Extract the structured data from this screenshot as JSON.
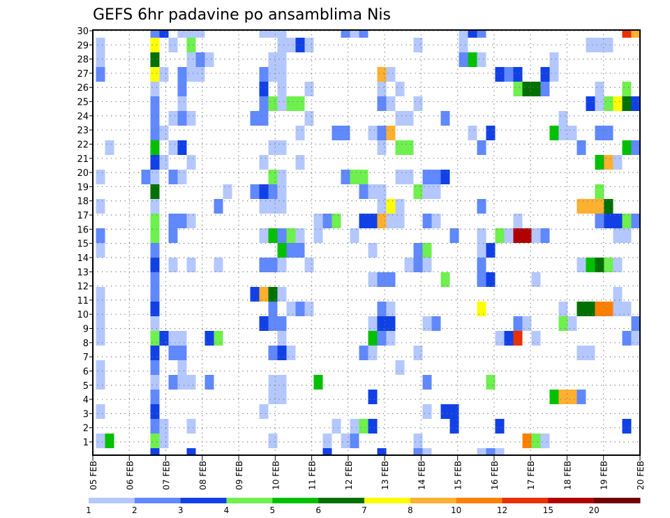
{
  "chart_data": {
    "type": "heatmap",
    "title": "GEFS 6hr padavine po ansamblima Nis",
    "xlabel": "",
    "ylabel": "",
    "x_tick_labels": [
      "05 FEB",
      "06 FEB",
      "07 FEB",
      "08 FEB",
      "09 FEB",
      "10 FEB",
      "11 FEB",
      "12 FEB",
      "13 FEB",
      "14 FEB",
      "15 FEB",
      "16 FEB",
      "17 FEB",
      "18 FEB",
      "19 FEB",
      "20 FEB"
    ],
    "y_tick_labels": [
      "1",
      "2",
      "3",
      "4",
      "5",
      "6",
      "7",
      "8",
      "9",
      "10",
      "11",
      "12",
      "13",
      "14",
      "15",
      "16",
      "17",
      "18",
      "19",
      "20",
      "21",
      "22",
      "23",
      "24",
      "25",
      "26",
      "27",
      "28",
      "29",
      "30"
    ],
    "x_steps": 60,
    "x_step_hours": 6,
    "members": 30,
    "grid": true,
    "colorbar": {
      "placement": "bottom",
      "labels": [
        "1",
        "2",
        "3",
        "4",
        "5",
        "6",
        "7",
        "8",
        "10",
        "12",
        "15",
        "20"
      ],
      "colors": [
        "#b4c8ff",
        "#6088ff",
        "#1040e6",
        "#6ef04e",
        "#00c000",
        "#007000",
        "#ffff00",
        "#ffb030",
        "#ff8000",
        "#e83000",
        "#b00000",
        "#700000"
      ]
    },
    "cells_note": "member -> list of [time step index, colour class index 1-12]",
    "cells": {
      "30": [
        [
          6,
          2
        ],
        [
          7,
          3
        ],
        [
          9,
          1
        ],
        [
          10,
          1
        ],
        [
          11,
          1
        ],
        [
          18,
          1
        ],
        [
          19,
          1
        ],
        [
          20,
          1
        ],
        [
          27,
          2
        ],
        [
          28,
          1
        ],
        [
          29,
          2
        ],
        [
          40,
          1
        ],
        [
          41,
          3
        ],
        [
          42,
          2
        ],
        [
          58,
          10
        ],
        [
          59,
          8
        ]
      ],
      "29": [
        [
          0,
          1
        ],
        [
          6,
          7
        ],
        [
          8,
          1
        ],
        [
          10,
          4
        ],
        [
          20,
          1
        ],
        [
          21,
          1
        ],
        [
          22,
          3
        ],
        [
          23,
          1
        ],
        [
          35,
          1
        ],
        [
          40,
          1
        ],
        [
          54,
          1
        ],
        [
          55,
          1
        ],
        [
          56,
          1
        ]
      ],
      "28": [
        [
          0,
          1
        ],
        [
          6,
          6
        ],
        [
          10,
          1
        ],
        [
          11,
          2
        ],
        [
          12,
          1
        ],
        [
          19,
          1
        ],
        [
          20,
          1
        ],
        [
          40,
          2
        ],
        [
          41,
          5
        ],
        [
          42,
          1
        ],
        [
          50,
          1
        ]
      ],
      "27": [
        [
          0,
          2
        ],
        [
          6,
          7
        ],
        [
          7,
          1
        ],
        [
          9,
          2
        ],
        [
          10,
          1
        ],
        [
          11,
          1
        ],
        [
          18,
          2
        ],
        [
          19,
          1
        ],
        [
          20,
          1
        ],
        [
          31,
          8
        ],
        [
          32,
          1
        ],
        [
          44,
          3
        ],
        [
          45,
          2
        ],
        [
          46,
          3
        ],
        [
          49,
          3
        ],
        [
          50,
          1
        ]
      ],
      "26": [
        [
          6,
          1
        ],
        [
          9,
          2
        ],
        [
          18,
          3
        ],
        [
          20,
          1
        ],
        [
          23,
          1
        ],
        [
          31,
          1
        ],
        [
          33,
          1
        ],
        [
          46,
          4
        ],
        [
          47,
          6
        ],
        [
          48,
          6
        ],
        [
          49,
          2
        ],
        [
          55,
          1
        ],
        [
          58,
          4
        ]
      ],
      "25": [
        [
          6,
          2
        ],
        [
          9,
          1
        ],
        [
          18,
          2
        ],
        [
          19,
          4
        ],
        [
          20,
          1
        ],
        [
          21,
          4
        ],
        [
          22,
          4
        ],
        [
          31,
          2
        ],
        [
          32,
          1
        ],
        [
          35,
          1
        ],
        [
          54,
          3
        ],
        [
          55,
          1
        ],
        [
          56,
          4
        ],
        [
          57,
          7
        ],
        [
          58,
          6
        ],
        [
          59,
          3
        ]
      ],
      "24": [
        [
          6,
          2
        ],
        [
          8,
          1
        ],
        [
          9,
          2
        ],
        [
          10,
          1
        ],
        [
          17,
          2
        ],
        [
          18,
          2
        ],
        [
          23,
          1
        ],
        [
          33,
          1
        ],
        [
          34,
          1
        ],
        [
          38,
          2
        ],
        [
          51,
          1
        ]
      ],
      "23": [
        [
          6,
          2
        ],
        [
          7,
          1
        ],
        [
          22,
          1
        ],
        [
          26,
          2
        ],
        [
          27,
          2
        ],
        [
          30,
          1
        ],
        [
          31,
          2
        ],
        [
          32,
          8
        ],
        [
          41,
          1
        ],
        [
          43,
          3
        ],
        [
          50,
          5
        ],
        [
          51,
          1
        ],
        [
          52,
          1
        ],
        [
          55,
          2
        ],
        [
          56,
          2
        ]
      ],
      "22": [
        [
          1,
          1
        ],
        [
          6,
          5
        ],
        [
          8,
          1
        ],
        [
          9,
          3
        ],
        [
          19,
          1
        ],
        [
          20,
          1
        ],
        [
          31,
          1
        ],
        [
          33,
          4
        ],
        [
          34,
          4
        ],
        [
          42,
          2
        ],
        [
          53,
          2
        ],
        [
          58,
          5
        ],
        [
          59,
          2
        ]
      ],
      "21": [
        [
          6,
          3
        ],
        [
          7,
          1
        ],
        [
          10,
          1
        ],
        [
          18,
          1
        ],
        [
          22,
          1
        ],
        [
          55,
          5
        ],
        [
          56,
          8
        ],
        [
          57,
          1
        ]
      ],
      "20": [
        [
          0,
          1
        ],
        [
          5,
          2
        ],
        [
          6,
          1
        ],
        [
          8,
          2
        ],
        [
          9,
          1
        ],
        [
          19,
          4
        ],
        [
          20,
          1
        ],
        [
          27,
          2
        ],
        [
          28,
          4
        ],
        [
          29,
          4
        ],
        [
          33,
          1
        ],
        [
          34,
          1
        ],
        [
          36,
          2
        ],
        [
          37,
          2
        ],
        [
          38,
          3
        ]
      ],
      "19": [
        [
          6,
          6
        ],
        [
          14,
          1
        ],
        [
          17,
          2
        ],
        [
          18,
          3
        ],
        [
          19,
          2
        ],
        [
          20,
          1
        ],
        [
          29,
          2
        ],
        [
          30,
          1
        ],
        [
          31,
          1
        ],
        [
          35,
          4
        ],
        [
          36,
          1
        ],
        [
          37,
          1
        ],
        [
          55,
          4
        ]
      ],
      "18": [
        [
          0,
          1
        ],
        [
          6,
          1
        ],
        [
          13,
          2
        ],
        [
          18,
          1
        ],
        [
          19,
          1
        ],
        [
          20,
          1
        ],
        [
          31,
          1
        ],
        [
          32,
          7
        ],
        [
          33,
          1
        ],
        [
          42,
          2
        ],
        [
          53,
          8
        ],
        [
          54,
          8
        ],
        [
          55,
          8
        ],
        [
          56,
          6
        ]
      ],
      "17": [
        [
          6,
          4
        ],
        [
          8,
          2
        ],
        [
          9,
          2
        ],
        [
          10,
          1
        ],
        [
          24,
          1
        ],
        [
          25,
          2
        ],
        [
          26,
          4
        ],
        [
          29,
          3
        ],
        [
          30,
          3
        ],
        [
          31,
          8
        ],
        [
          32,
          1
        ],
        [
          33,
          1
        ],
        [
          36,
          2
        ],
        [
          37,
          1
        ],
        [
          46,
          1
        ],
        [
          55,
          2
        ],
        [
          56,
          3
        ],
        [
          57,
          3
        ],
        [
          58,
          4
        ],
        [
          59,
          2
        ]
      ],
      "16": [
        [
          0,
          2
        ],
        [
          6,
          4
        ],
        [
          8,
          2
        ],
        [
          18,
          1
        ],
        [
          19,
          5
        ],
        [
          20,
          2
        ],
        [
          21,
          4
        ],
        [
          22,
          1
        ],
        [
          24,
          1
        ],
        [
          28,
          1
        ],
        [
          39,
          2
        ],
        [
          42,
          1
        ],
        [
          44,
          4
        ],
        [
          45,
          1
        ],
        [
          46,
          11
        ],
        [
          47,
          11
        ],
        [
          48,
          1
        ],
        [
          49,
          2
        ],
        [
          57,
          1
        ],
        [
          58,
          1
        ]
      ],
      "15": [
        [
          0,
          1
        ],
        [
          6,
          2
        ],
        [
          20,
          5
        ],
        [
          21,
          2
        ],
        [
          22,
          2
        ],
        [
          30,
          1
        ],
        [
          35,
          2
        ],
        [
          36,
          4
        ],
        [
          42,
          1
        ],
        [
          43,
          3
        ]
      ],
      "14": [
        [
          6,
          3
        ],
        [
          8,
          1
        ],
        [
          10,
          1
        ],
        [
          13,
          1
        ],
        [
          18,
          2
        ],
        [
          19,
          2
        ],
        [
          20,
          1
        ],
        [
          23,
          1
        ],
        [
          34,
          1
        ],
        [
          35,
          2
        ],
        [
          36,
          1
        ],
        [
          42,
          2
        ],
        [
          53,
          1
        ],
        [
          54,
          5
        ],
        [
          55,
          6
        ],
        [
          56,
          4
        ],
        [
          57,
          1
        ]
      ],
      "13": [
        [
          6,
          2
        ],
        [
          30,
          1
        ],
        [
          31,
          2
        ],
        [
          32,
          2
        ],
        [
          38,
          4
        ],
        [
          42,
          2
        ],
        [
          43,
          3
        ],
        [
          48,
          1
        ]
      ],
      "12": [
        [
          0,
          1
        ],
        [
          6,
          2
        ],
        [
          17,
          3
        ],
        [
          18,
          8
        ],
        [
          19,
          6
        ],
        [
          20,
          1
        ],
        [
          57,
          1
        ]
      ],
      "11": [
        [
          0,
          1
        ],
        [
          6,
          3
        ],
        [
          19,
          2
        ],
        [
          21,
          1
        ],
        [
          22,
          2
        ],
        [
          23,
          1
        ],
        [
          31,
          2
        ],
        [
          32,
          1
        ],
        [
          42,
          7
        ],
        [
          51,
          1
        ],
        [
          53,
          6
        ],
        [
          54,
          6
        ],
        [
          55,
          9
        ],
        [
          56,
          9
        ],
        [
          57,
          1
        ],
        [
          58,
          1
        ]
      ],
      "10": [
        [
          0,
          1
        ],
        [
          6,
          1
        ],
        [
          18,
          3
        ],
        [
          19,
          2
        ],
        [
          20,
          2
        ],
        [
          30,
          1
        ],
        [
          31,
          3
        ],
        [
          32,
          3
        ],
        [
          36,
          1
        ],
        [
          37,
          2
        ],
        [
          46,
          2
        ],
        [
          47,
          1
        ],
        [
          51,
          4
        ],
        [
          52,
          1
        ],
        [
          59,
          2
        ]
      ],
      "9": [
        [
          0,
          1
        ],
        [
          6,
          4
        ],
        [
          7,
          3
        ],
        [
          8,
          1
        ],
        [
          9,
          1
        ],
        [
          12,
          3
        ],
        [
          13,
          4
        ],
        [
          20,
          1
        ],
        [
          30,
          5
        ],
        [
          31,
          2
        ],
        [
          32,
          1
        ],
        [
          44,
          1
        ],
        [
          45,
          3
        ],
        [
          46,
          10
        ],
        [
          48,
          1
        ],
        [
          58,
          2
        ],
        [
          59,
          1
        ]
      ],
      "8": [
        [
          6,
          3
        ],
        [
          8,
          2
        ],
        [
          9,
          2
        ],
        [
          19,
          2
        ],
        [
          20,
          3
        ],
        [
          21,
          1
        ],
        [
          29,
          2
        ],
        [
          30,
          1
        ],
        [
          35,
          1
        ],
        [
          53,
          1
        ],
        [
          54,
          1
        ]
      ],
      "7": [
        [
          0,
          1
        ],
        [
          6,
          2
        ],
        [
          9,
          1
        ],
        [
          33,
          1
        ]
      ],
      "6": [
        [
          0,
          1
        ],
        [
          6,
          1
        ],
        [
          8,
          2
        ],
        [
          9,
          1
        ],
        [
          10,
          1
        ],
        [
          12,
          2
        ],
        [
          19,
          1
        ],
        [
          20,
          1
        ],
        [
          24,
          5
        ],
        [
          36,
          2
        ],
        [
          43,
          4
        ]
      ],
      "5": [
        [
          6,
          2
        ],
        [
          19,
          1
        ],
        [
          20,
          1
        ],
        [
          30,
          3
        ],
        [
          50,
          5
        ],
        [
          51,
          8
        ],
        [
          52,
          8
        ],
        [
          53,
          2
        ]
      ],
      "4": [
        [
          0,
          1
        ],
        [
          6,
          3
        ],
        [
          18,
          1
        ],
        [
          36,
          1
        ],
        [
          38,
          3
        ],
        [
          39,
          3
        ]
      ],
      "3": [
        [
          6,
          2
        ],
        [
          7,
          1
        ],
        [
          10,
          1
        ],
        [
          26,
          1
        ],
        [
          28,
          1
        ],
        [
          29,
          4
        ],
        [
          30,
          3
        ],
        [
          39,
          3
        ],
        [
          44,
          3
        ],
        [
          58,
          3
        ]
      ],
      "2": [
        [
          0,
          1
        ],
        [
          1,
          5
        ],
        [
          6,
          4
        ],
        [
          7,
          1
        ],
        [
          19,
          1
        ],
        [
          25,
          1
        ],
        [
          27,
          1
        ],
        [
          28,
          2
        ],
        [
          35,
          1
        ],
        [
          47,
          9
        ],
        [
          48,
          4
        ],
        [
          49,
          1
        ]
      ],
      "1": [
        [
          6,
          3
        ],
        [
          10,
          3
        ],
        [
          25,
          3
        ],
        [
          31,
          3
        ],
        [
          35,
          2
        ],
        [
          36,
          1
        ],
        [
          42,
          1
        ],
        [
          43,
          2
        ],
        [
          44,
          1
        ]
      ]
    }
  }
}
